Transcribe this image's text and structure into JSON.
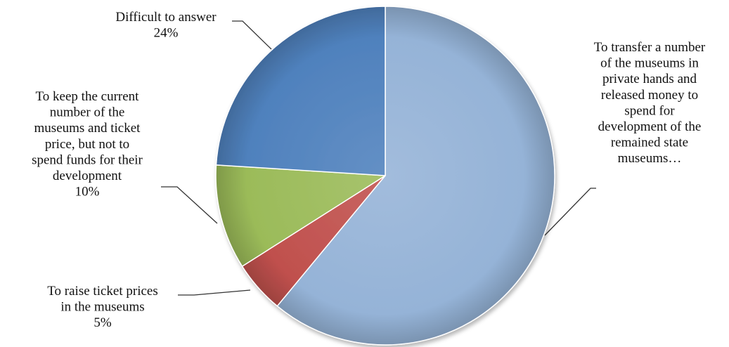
{
  "chart_data": {
    "type": "pie",
    "start": "top",
    "direction": "clockwise",
    "slices": [
      {
        "label_lines": [
          "To transfer a number",
          "of the museums in",
          "private hands and",
          "released money to",
          "spend for",
          "development of the",
          "remained state",
          "museums…"
        ],
        "value": 61,
        "value_label": "",
        "color": "#95b3d7"
      },
      {
        "label_lines": [
          "To raise ticket prices",
          "in the museums"
        ],
        "value": 5,
        "value_label": "5%",
        "color": "#c0504d"
      },
      {
        "label_lines": [
          "To keep the current",
          "number of the",
          "museums and ticket",
          "price, but not to",
          "spend funds for their",
          "development"
        ],
        "value": 10,
        "value_label": "10%",
        "color": "#9bbb59"
      },
      {
        "label_lines": [
          "Difficult to answer"
        ],
        "value": 24,
        "value_label": "24%",
        "color": "#4f81bd"
      }
    ]
  }
}
